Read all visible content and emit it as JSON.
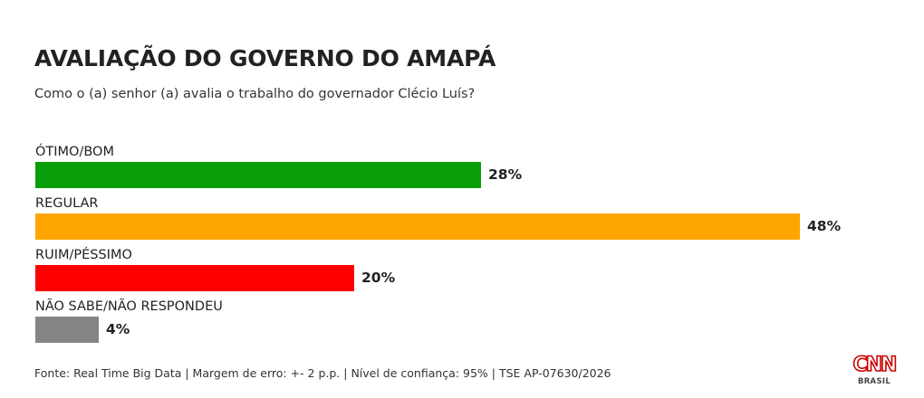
{
  "header": {
    "title": "AVALIAÇÃO DO GOVERNO DO AMAPÁ",
    "subtitle": "Como o (a) senhor (a) avalia o trabalho do governador Clécio Luís?"
  },
  "footer": {
    "source": "Fonte: Real Time Big Data | Margem de erro: +- 2 p.p. | Nível de confiança: 95% | TSE AP-07630/2026"
  },
  "logo": {
    "brand": "CNN",
    "region": "BRASIL",
    "brand_color": "#cc0000"
  },
  "chart_data": {
    "type": "bar",
    "orientation": "horizontal",
    "title": "AVALIAÇÃO DO GOVERNO DO AMAPÁ",
    "subtitle": "Como o (a) senhor (a) avalia o trabalho do governador Clécio Luís?",
    "unit": "%",
    "xlim": [
      0,
      48
    ],
    "grid": false,
    "categories": [
      "ÓTIMO/BOM",
      "REGULAR",
      "RUIM/PÉSSIMO",
      "NÃO SABE/NÃO RESPONDEU"
    ],
    "values": [
      28,
      48,
      20,
      4
    ],
    "value_labels": [
      "28%",
      "48%",
      "20%",
      "4%"
    ],
    "colors": [
      "#0a9e0a",
      "#ffa500",
      "#ff0000",
      "#858585"
    ]
  }
}
